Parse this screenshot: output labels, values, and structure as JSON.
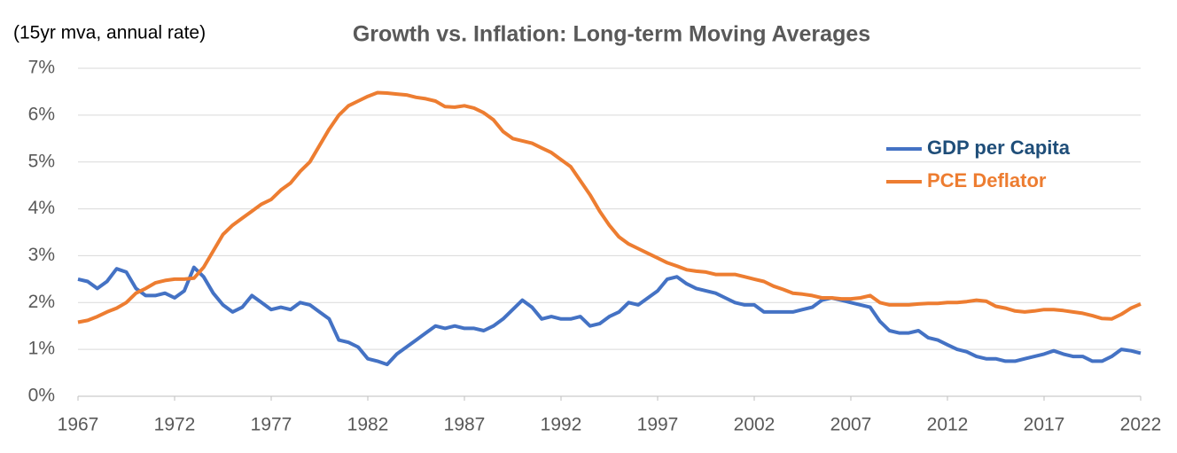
{
  "chart_data": {
    "type": "line",
    "title": "Growth vs. Inflation: Long-term Moving Averages",
    "subtitle": "(15yr mva, annual rate)",
    "x": [
      1967,
      1967.5,
      1968,
      1968.5,
      1969,
      1969.5,
      1970,
      1970.5,
      1971,
      1971.5,
      1972,
      1972.5,
      1973,
      1973.5,
      1974,
      1974.5,
      1975,
      1975.5,
      1976,
      1976.5,
      1977,
      1977.5,
      1978,
      1978.5,
      1979,
      1979.5,
      1980,
      1980.5,
      1981,
      1981.5,
      1982,
      1982.5,
      1983,
      1983.5,
      1984,
      1984.5,
      1985,
      1985.5,
      1986,
      1986.5,
      1987,
      1987.5,
      1988,
      1988.5,
      1989,
      1989.5,
      1990,
      1990.5,
      1991,
      1991.5,
      1992,
      1992.5,
      1993,
      1993.5,
      1994,
      1994.5,
      1995,
      1995.5,
      1996,
      1996.5,
      1997,
      1997.5,
      1998,
      1998.5,
      1999,
      1999.5,
      2000,
      2000.5,
      2001,
      2001.5,
      2002,
      2002.5,
      2003,
      2003.5,
      2004,
      2004.5,
      2005,
      2005.5,
      2006,
      2006.5,
      2007,
      2007.5,
      2008,
      2008.5,
      2009,
      2009.5,
      2010,
      2010.5,
      2011,
      2011.5,
      2012,
      2012.5,
      2013,
      2013.5,
      2014,
      2014.5,
      2015,
      2015.5,
      2016,
      2016.5,
      2017,
      2017.5,
      2018,
      2018.5,
      2019,
      2019.5,
      2020,
      2020.5,
      2021,
      2021.5,
      2022
    ],
    "series": [
      {
        "name": "GDP per Capita",
        "color": "#4472c4",
        "values": [
          2.5,
          2.45,
          2.3,
          2.45,
          2.72,
          2.65,
          2.3,
          2.15,
          2.15,
          2.2,
          2.1,
          2.25,
          2.75,
          2.55,
          2.2,
          1.95,
          1.8,
          1.9,
          2.15,
          2.0,
          1.85,
          1.9,
          1.85,
          2.0,
          1.95,
          1.8,
          1.65,
          1.2,
          1.15,
          1.05,
          0.8,
          0.75,
          0.68,
          0.9,
          1.05,
          1.2,
          1.35,
          1.5,
          1.45,
          1.5,
          1.45,
          1.45,
          1.4,
          1.5,
          1.65,
          1.85,
          2.05,
          1.9,
          1.65,
          1.7,
          1.65,
          1.65,
          1.7,
          1.5,
          1.55,
          1.7,
          1.8,
          2.0,
          1.95,
          2.1,
          2.25,
          2.5,
          2.55,
          2.4,
          2.3,
          2.25,
          2.2,
          2.1,
          2.0,
          1.95,
          1.95,
          1.8,
          1.8,
          1.8,
          1.8,
          1.85,
          1.9,
          2.05,
          2.1,
          2.05,
          2.0,
          1.95,
          1.9,
          1.6,
          1.4,
          1.35,
          1.35,
          1.4,
          1.25,
          1.2,
          1.1,
          1.0,
          0.95,
          0.85,
          0.8,
          0.8,
          0.75,
          0.75,
          0.8,
          0.85,
          0.9,
          0.97,
          0.9,
          0.85,
          0.85,
          0.75,
          0.75,
          0.85,
          1.0,
          0.97,
          0.92
        ]
      },
      {
        "name": "PCE Deflator",
        "color": "#ed7d31",
        "values": [
          1.58,
          1.62,
          1.7,
          1.8,
          1.88,
          2.0,
          2.2,
          2.3,
          2.42,
          2.47,
          2.5,
          2.5,
          2.52,
          2.75,
          3.1,
          3.45,
          3.65,
          3.8,
          3.95,
          4.1,
          4.2,
          4.4,
          4.55,
          4.8,
          5.0,
          5.35,
          5.7,
          6.0,
          6.2,
          6.3,
          6.4,
          6.48,
          6.47,
          6.45,
          6.43,
          6.38,
          6.35,
          6.3,
          6.18,
          6.17,
          6.2,
          6.15,
          6.05,
          5.9,
          5.65,
          5.5,
          5.45,
          5.4,
          5.3,
          5.2,
          5.05,
          4.9,
          4.6,
          4.3,
          3.95,
          3.65,
          3.4,
          3.25,
          3.15,
          3.05,
          2.95,
          2.85,
          2.78,
          2.7,
          2.67,
          2.65,
          2.6,
          2.6,
          2.6,
          2.55,
          2.5,
          2.45,
          2.35,
          2.28,
          2.2,
          2.18,
          2.15,
          2.1,
          2.1,
          2.08,
          2.08,
          2.1,
          2.15,
          2.0,
          1.95,
          1.95,
          1.95,
          1.97,
          1.98,
          1.98,
          2.0,
          2.0,
          2.02,
          2.05,
          2.03,
          1.92,
          1.88,
          1.82,
          1.8,
          1.82,
          1.85,
          1.85,
          1.83,
          1.8,
          1.77,
          1.72,
          1.66,
          1.65,
          1.75,
          1.88,
          1.97
        ]
      }
    ],
    "xlim": [
      1967,
      2022
    ],
    "xticks": [
      1967,
      1972,
      1977,
      1982,
      1987,
      1992,
      1997,
      2002,
      2007,
      2012,
      2017,
      2022
    ],
    "ylim": [
      0,
      7
    ],
    "yticks": [
      {
        "value": 0,
        "label": "0%"
      },
      {
        "value": 1,
        "label": "1%"
      },
      {
        "value": 2,
        "label": "2%"
      },
      {
        "value": 3,
        "label": "3%"
      },
      {
        "value": 4,
        "label": "4%"
      },
      {
        "value": 5,
        "label": "5%"
      },
      {
        "value": 6,
        "label": "6%"
      },
      {
        "value": 7,
        "label": "7%"
      }
    ],
    "grid": true,
    "legend": "right"
  }
}
